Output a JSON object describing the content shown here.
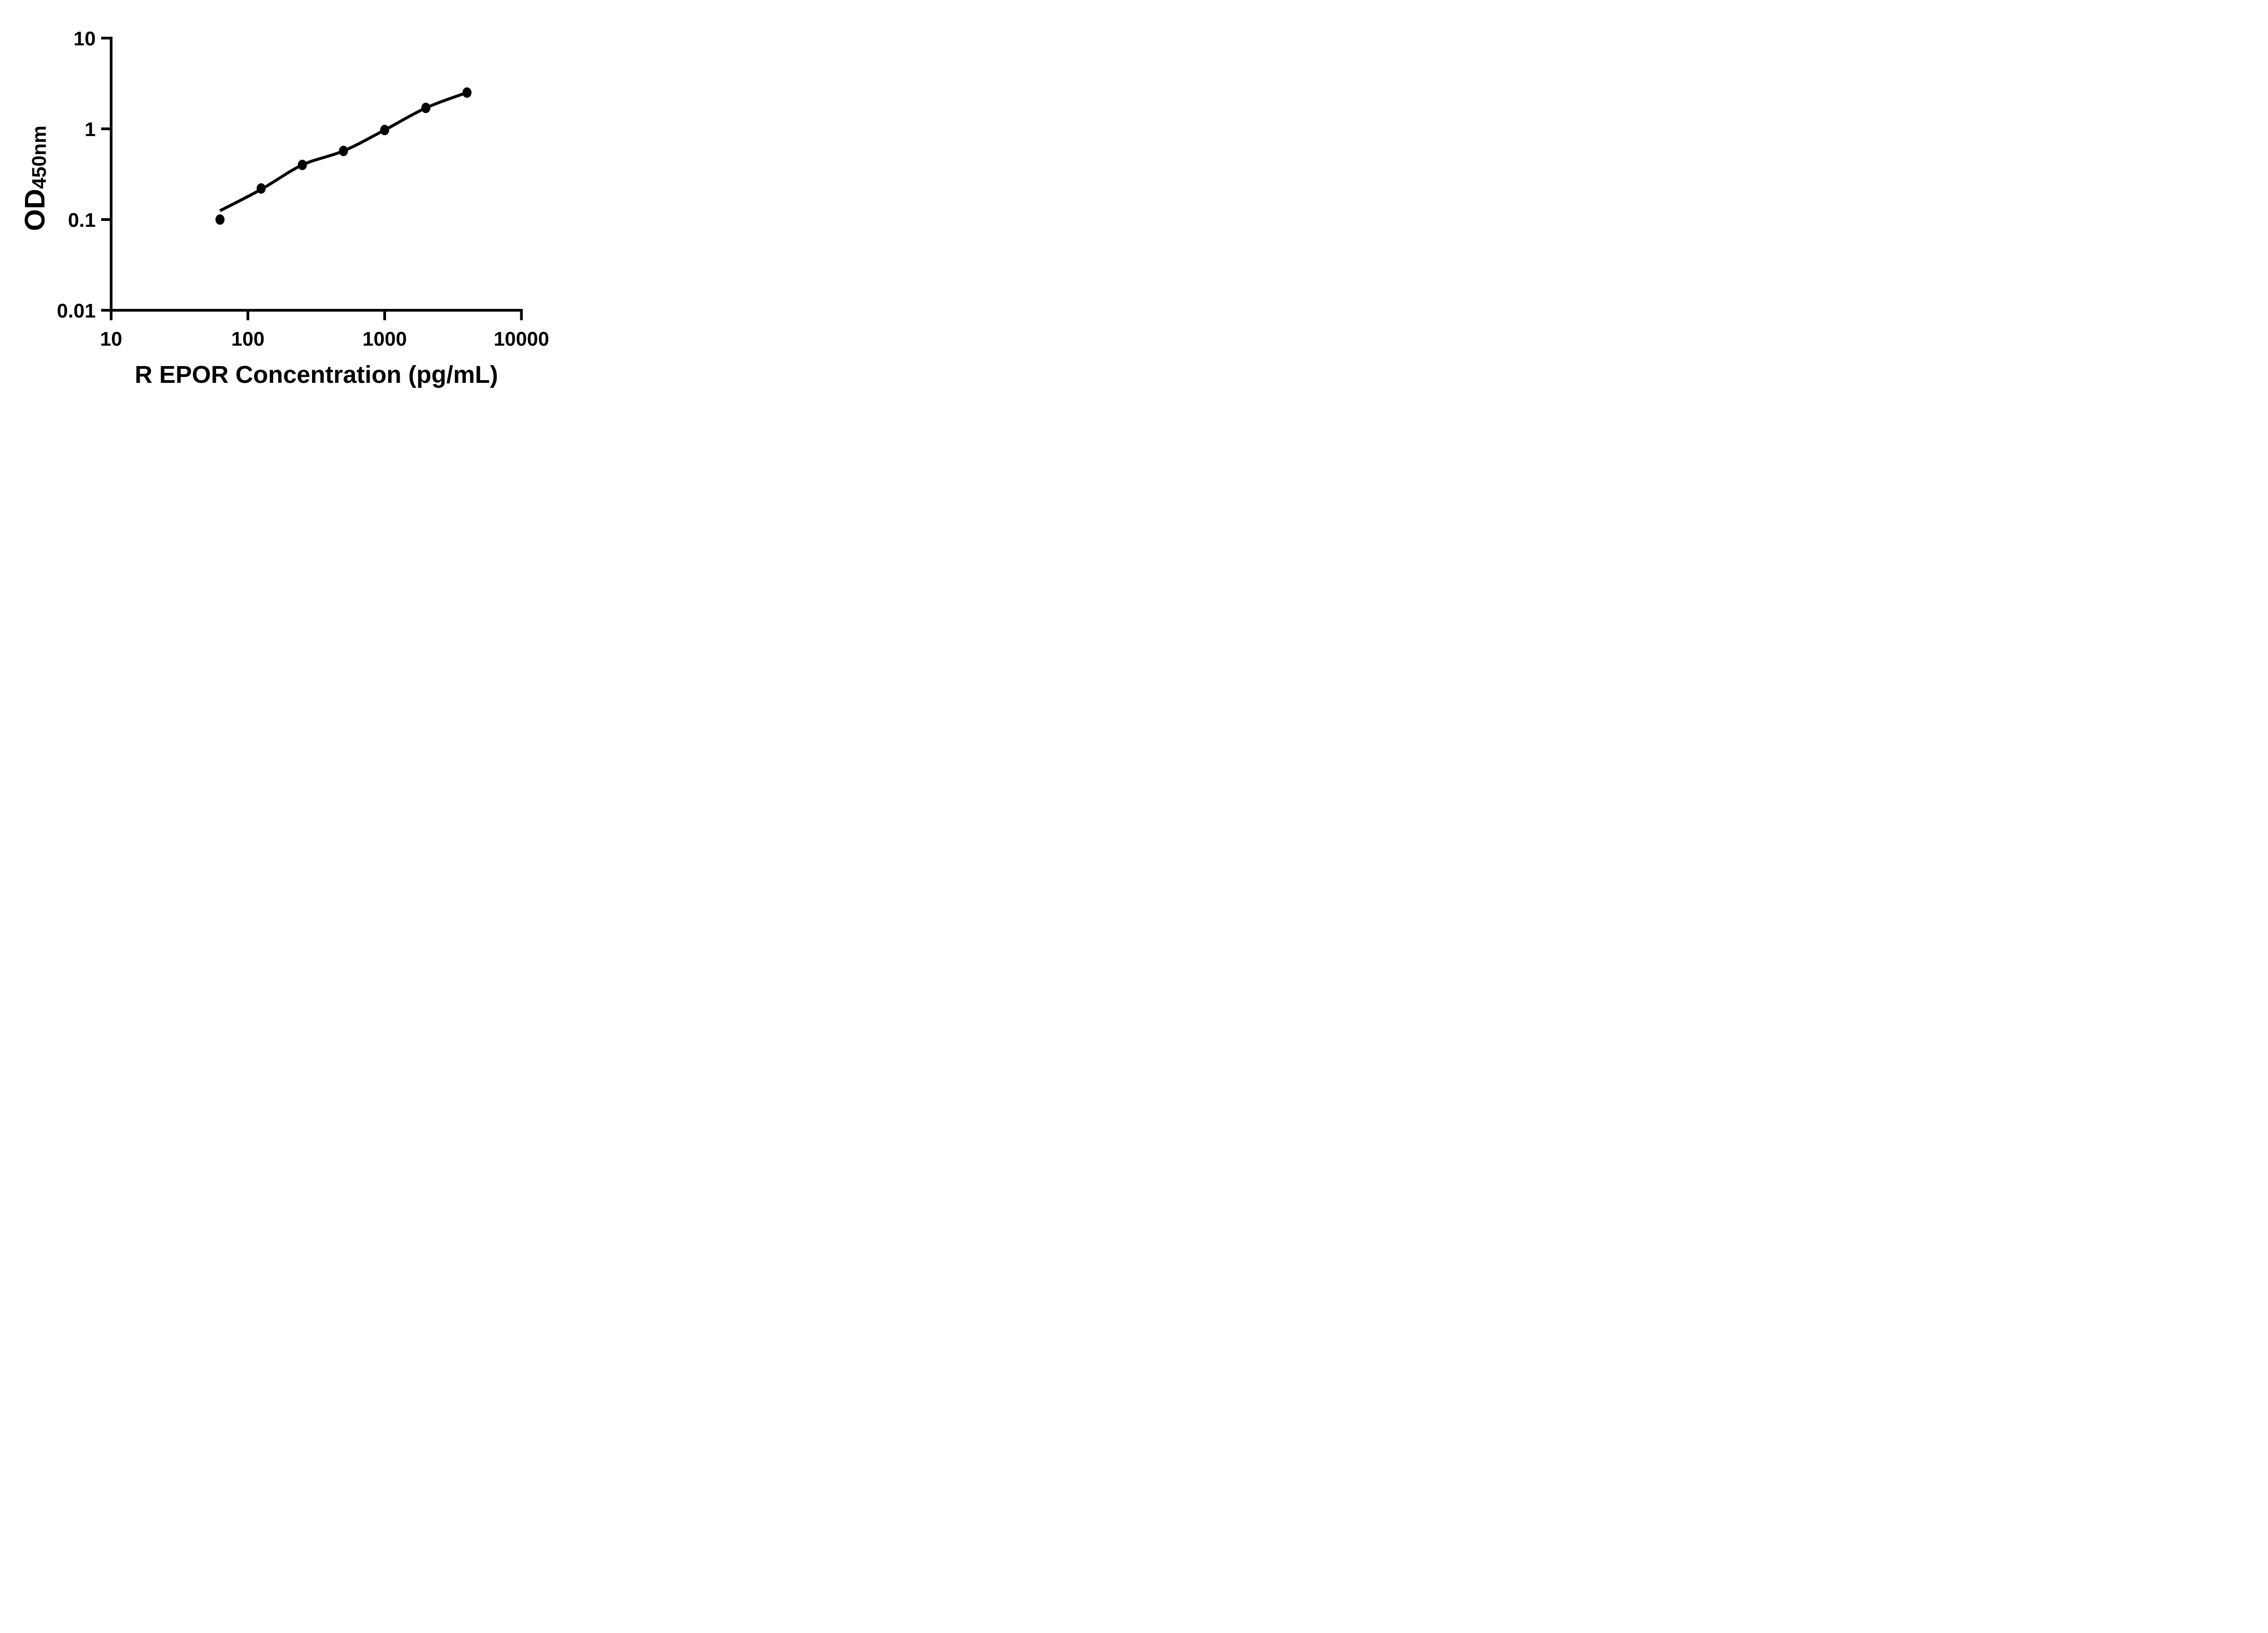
{
  "page": {
    "background": "#ffffff",
    "ink_color": "#000000"
  },
  "chart_data": {
    "type": "scatter",
    "title": "",
    "xlabel": "R EPOR Concentration (pg/mL)",
    "ylabel": "OD450nm",
    "ylabel_main": "OD",
    "ylabel_sub": "450nm",
    "x_scale": "log10",
    "y_scale": "log10",
    "xlim": [
      10,
      10000
    ],
    "ylim": [
      0.01,
      10
    ],
    "x_tick_labels": [
      "10",
      "100",
      "1000",
      "10000"
    ],
    "x_tick_values": [
      10,
      100,
      1000,
      10000
    ],
    "y_tick_labels": [
      "0.01",
      "0.1",
      "1",
      "10"
    ],
    "y_tick_values": [
      0.01,
      0.1,
      1,
      10
    ],
    "grid": false,
    "legend": false,
    "marker": "filled-circle",
    "marker_color": "#000000",
    "line_color": "#000000",
    "series": [
      {
        "x": [
          62.5,
          125,
          250,
          500,
          1000,
          2000,
          4000
        ],
        "y": [
          0.1,
          0.22,
          0.4,
          0.57,
          0.97,
          1.7,
          2.51
        ]
      }
    ],
    "fit_line": {
      "x": [
        62.5,
        125,
        250,
        500,
        1000,
        2000,
        4000
      ],
      "y": [
        0.125,
        0.215,
        0.4,
        0.57,
        0.97,
        1.7,
        2.51
      ]
    }
  }
}
